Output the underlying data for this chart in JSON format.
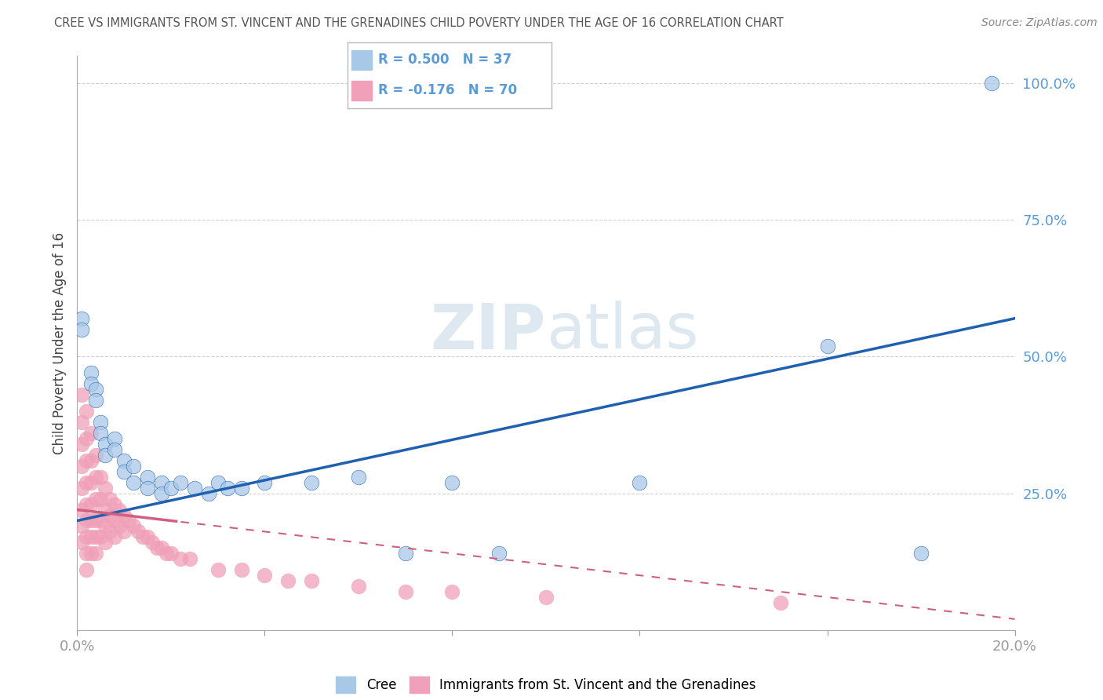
{
  "title": "CREE VS IMMIGRANTS FROM ST. VINCENT AND THE GRENADINES CHILD POVERTY UNDER THE AGE OF 16 CORRELATION CHART",
  "source": "Source: ZipAtlas.com",
  "ylabel": "Child Poverty Under the Age of 16",
  "cree_R": "R = 0.500",
  "cree_N": "N = 37",
  "svg_R": "R = -0.176",
  "svg_N": "N = 70",
  "cree_color": "#a8c8e8",
  "svg_color": "#f0a0b8",
  "cree_line_color": "#2060b0",
  "svg_line_color": "#d06080",
  "background_color": "#ffffff",
  "grid_color": "#cccccc",
  "title_color": "#555555",
  "axis_label_color": "#5b9bd5",
  "watermark_color": "#dde8f0",
  "cree_points": [
    [
      0.001,
      0.57
    ],
    [
      0.001,
      0.55
    ],
    [
      0.003,
      0.47
    ],
    [
      0.003,
      0.45
    ],
    [
      0.004,
      0.44
    ],
    [
      0.004,
      0.42
    ],
    [
      0.005,
      0.38
    ],
    [
      0.005,
      0.36
    ],
    [
      0.006,
      0.34
    ],
    [
      0.006,
      0.32
    ],
    [
      0.008,
      0.35
    ],
    [
      0.008,
      0.33
    ],
    [
      0.01,
      0.31
    ],
    [
      0.01,
      0.29
    ],
    [
      0.012,
      0.3
    ],
    [
      0.012,
      0.27
    ],
    [
      0.015,
      0.28
    ],
    [
      0.015,
      0.26
    ],
    [
      0.018,
      0.27
    ],
    [
      0.018,
      0.25
    ],
    [
      0.02,
      0.26
    ],
    [
      0.022,
      0.27
    ],
    [
      0.025,
      0.26
    ],
    [
      0.028,
      0.25
    ],
    [
      0.03,
      0.27
    ],
    [
      0.032,
      0.26
    ],
    [
      0.035,
      0.26
    ],
    [
      0.04,
      0.27
    ],
    [
      0.05,
      0.27
    ],
    [
      0.06,
      0.28
    ],
    [
      0.07,
      0.14
    ],
    [
      0.08,
      0.27
    ],
    [
      0.09,
      0.14
    ],
    [
      0.12,
      0.27
    ],
    [
      0.16,
      0.52
    ],
    [
      0.18,
      0.14
    ],
    [
      0.195,
      1.0
    ]
  ],
  "svg_points": [
    [
      0.001,
      0.43
    ],
    [
      0.001,
      0.38
    ],
    [
      0.001,
      0.34
    ],
    [
      0.001,
      0.3
    ],
    [
      0.001,
      0.26
    ],
    [
      0.001,
      0.22
    ],
    [
      0.001,
      0.19
    ],
    [
      0.001,
      0.16
    ],
    [
      0.002,
      0.4
    ],
    [
      0.002,
      0.35
    ],
    [
      0.002,
      0.31
    ],
    [
      0.002,
      0.27
    ],
    [
      0.002,
      0.23
    ],
    [
      0.002,
      0.2
    ],
    [
      0.002,
      0.17
    ],
    [
      0.002,
      0.14
    ],
    [
      0.002,
      0.11
    ],
    [
      0.003,
      0.36
    ],
    [
      0.003,
      0.31
    ],
    [
      0.003,
      0.27
    ],
    [
      0.003,
      0.23
    ],
    [
      0.003,
      0.2
    ],
    [
      0.003,
      0.17
    ],
    [
      0.003,
      0.14
    ],
    [
      0.004,
      0.32
    ],
    [
      0.004,
      0.28
    ],
    [
      0.004,
      0.24
    ],
    [
      0.004,
      0.2
    ],
    [
      0.004,
      0.17
    ],
    [
      0.004,
      0.14
    ],
    [
      0.005,
      0.28
    ],
    [
      0.005,
      0.24
    ],
    [
      0.005,
      0.2
    ],
    [
      0.005,
      0.17
    ],
    [
      0.006,
      0.26
    ],
    [
      0.006,
      0.22
    ],
    [
      0.006,
      0.19
    ],
    [
      0.006,
      0.16
    ],
    [
      0.007,
      0.24
    ],
    [
      0.007,
      0.21
    ],
    [
      0.007,
      0.18
    ],
    [
      0.008,
      0.23
    ],
    [
      0.008,
      0.2
    ],
    [
      0.008,
      0.17
    ],
    [
      0.009,
      0.22
    ],
    [
      0.009,
      0.19
    ],
    [
      0.01,
      0.21
    ],
    [
      0.01,
      0.18
    ],
    [
      0.011,
      0.2
    ],
    [
      0.012,
      0.19
    ],
    [
      0.013,
      0.18
    ],
    [
      0.014,
      0.17
    ],
    [
      0.015,
      0.17
    ],
    [
      0.016,
      0.16
    ],
    [
      0.017,
      0.15
    ],
    [
      0.018,
      0.15
    ],
    [
      0.019,
      0.14
    ],
    [
      0.02,
      0.14
    ],
    [
      0.022,
      0.13
    ],
    [
      0.024,
      0.13
    ],
    [
      0.03,
      0.11
    ],
    [
      0.035,
      0.11
    ],
    [
      0.04,
      0.1
    ],
    [
      0.045,
      0.09
    ],
    [
      0.05,
      0.09
    ],
    [
      0.06,
      0.08
    ],
    [
      0.07,
      0.07
    ],
    [
      0.08,
      0.07
    ],
    [
      0.1,
      0.06
    ],
    [
      0.15,
      0.05
    ]
  ],
  "xlim": [
    0.0,
    0.2
  ],
  "ylim": [
    0.0,
    1.05
  ],
  "xtick_positions": [
    0.0,
    0.2
  ],
  "xtick_labels": [
    "0.0%",
    "20.0%"
  ],
  "xtick_minor": [
    0.04,
    0.08,
    0.12,
    0.16
  ],
  "ytick_positions": [
    0.25,
    0.5,
    0.75,
    1.0
  ],
  "ytick_labels": [
    "25.0%",
    "50.0%",
    "75.0%",
    "100.0%"
  ]
}
